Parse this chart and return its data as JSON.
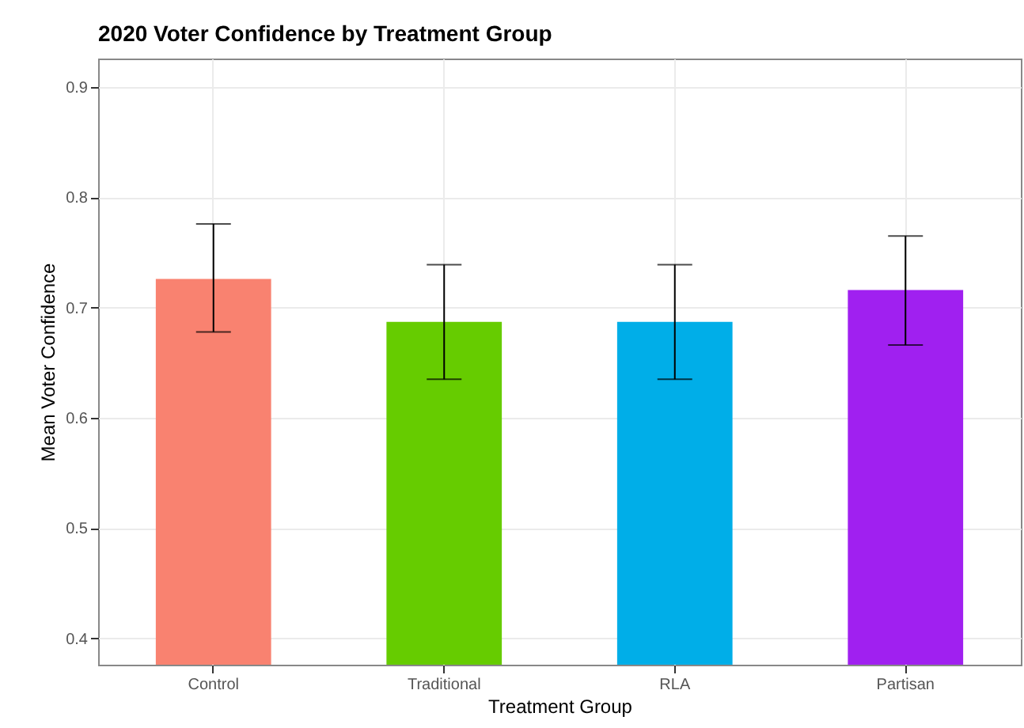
{
  "chart_data": {
    "type": "bar",
    "title": "2020 Voter Confidence by Treatment Group",
    "xlabel": "Treatment Group",
    "ylabel": "Mean Voter Confidence",
    "categories": [
      "Control",
      "Traditional",
      "RLA",
      "Partisan"
    ],
    "values": [
      0.726,
      0.687,
      0.687,
      0.716
    ],
    "colors": [
      "#f98270",
      "#66cc00",
      "#00aee8",
      "#a020f0"
    ],
    "errors": [
      [
        0.678,
        0.776
      ],
      [
        0.635,
        0.739
      ],
      [
        0.635,
        0.739
      ],
      [
        0.666,
        0.765
      ]
    ],
    "ylim": [
      0.376,
      0.926
    ],
    "yticks": [
      0.4,
      0.5,
      0.6,
      0.7,
      0.8,
      0.9
    ],
    "grid": true
  }
}
